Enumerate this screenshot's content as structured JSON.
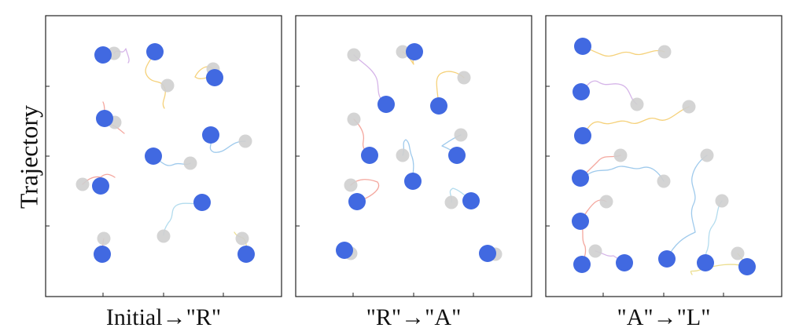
{
  "y_axis_label": "Trajectory",
  "colors": {
    "robot": "#4169e1",
    "start_marker": "#cfcfcf",
    "frame": "#222222",
    "trajectory_palette": [
      "#c79be0",
      "#f2c14e",
      "#f08a7e",
      "#7fb8e6",
      "#9ad0e8",
      "#e6d36a",
      "#b7d98b"
    ]
  },
  "panels": [
    {
      "caption": "Initial→\"R\"",
      "formation_target": "R"
    },
    {
      "caption": "\"R\"→\"A\"",
      "formation_target": "A"
    },
    {
      "caption": "\"A\"→\"L\"",
      "formation_target": "L"
    }
  ]
}
